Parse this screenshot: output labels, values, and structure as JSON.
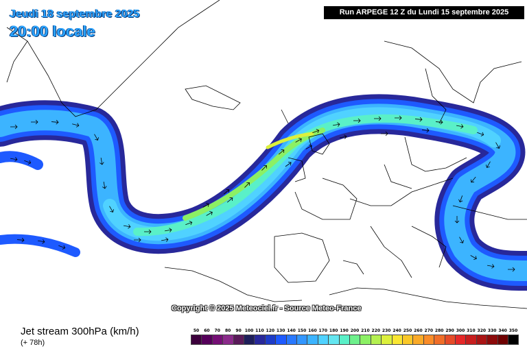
{
  "header": {
    "date_text": "Jeudi 18 septembre 2025",
    "time_text": "20:00 locale",
    "run_text": "Run ARPEGE 12 Z du Lundi 15 septembre 2025"
  },
  "map": {
    "copyright": "Copyright © 2025 Meteociel.fr - Source Meteo-France"
  },
  "footer": {
    "title": "Jet stream 300hPa (km/h)",
    "forecast_step": "(+ 78h)"
  },
  "legend": {
    "values": [
      "50",
      "60",
      "70",
      "80",
      "90",
      "100",
      "110",
      "120",
      "130",
      "140",
      "150",
      "160",
      "170",
      "180",
      "190",
      "200",
      "210",
      "220",
      "230",
      "240",
      "250",
      "260",
      "270",
      "280",
      "290",
      "300",
      "310",
      "320",
      "330",
      "340",
      "350"
    ],
    "colors": [
      "#3c003c",
      "#55005a",
      "#750f75",
      "#8a2a8a",
      "#5a1a5a",
      "#1e1e5a",
      "#28289a",
      "#1e3cc8",
      "#1e5aff",
      "#2878ff",
      "#3296ff",
      "#3cb4ff",
      "#50d2ff",
      "#64e6f0",
      "#5af0c8",
      "#6ef08c",
      "#8cf064",
      "#b4f050",
      "#dcf03c",
      "#fae632",
      "#fac828",
      "#faaa28",
      "#fa8c28",
      "#f06e28",
      "#e64b28",
      "#e62828",
      "#c81e1e",
      "#aa1414",
      "#8c0a0a",
      "#6e0000",
      "#000000"
    ]
  }
}
